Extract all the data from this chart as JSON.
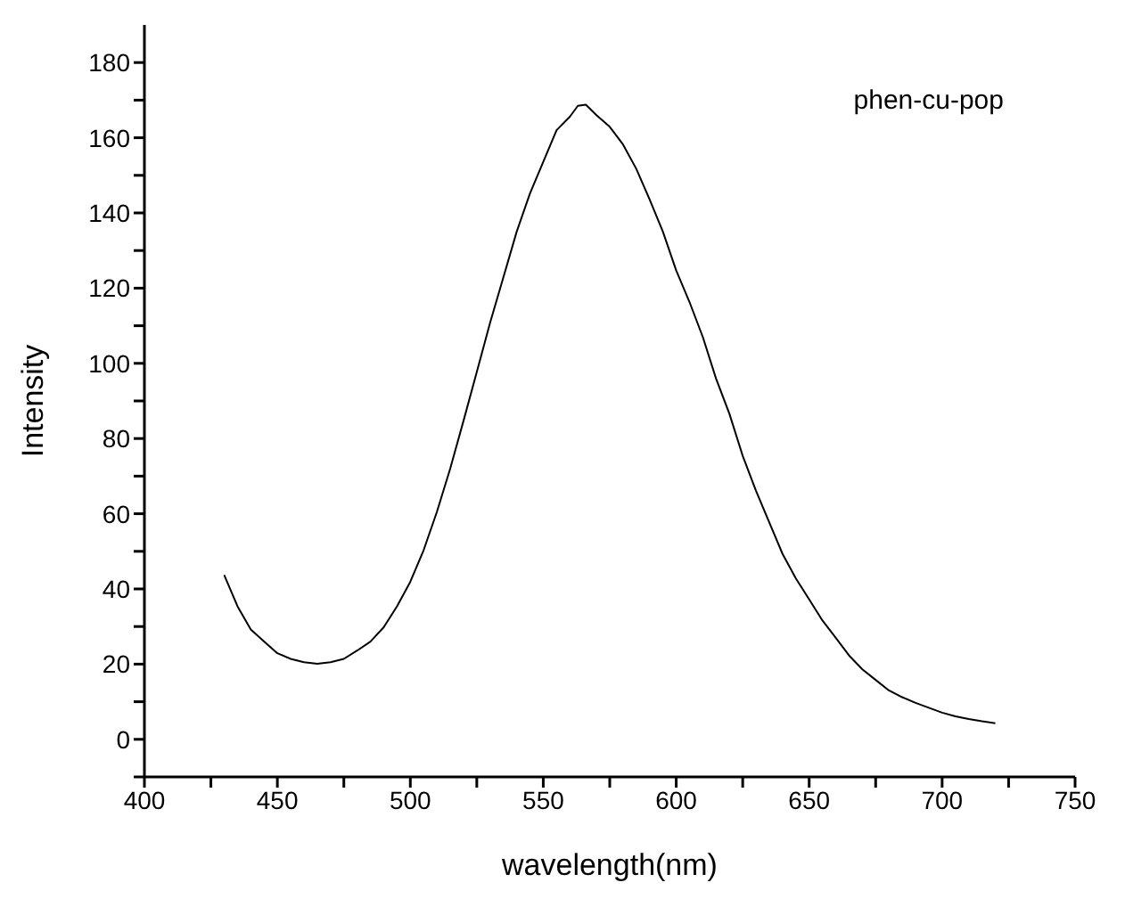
{
  "chart_data": {
    "type": "line",
    "xlabel": "wavelength(nm)",
    "ylabel": "Intensity",
    "x": [
      430,
      435,
      440,
      445,
      450,
      455,
      460,
      465,
      470,
      475,
      480,
      485,
      490,
      495,
      500,
      505,
      510,
      515,
      520,
      525,
      530,
      535,
      540,
      545,
      550,
      555,
      560,
      563,
      566,
      570,
      575,
      580,
      585,
      590,
      595,
      600,
      605,
      610,
      615,
      620,
      625,
      630,
      635,
      640,
      645,
      650,
      655,
      660,
      665,
      670,
      675,
      680,
      685,
      690,
      695,
      700,
      705,
      710,
      715,
      720
    ],
    "series": [
      {
        "name": "phen-cu-pop",
        "color": "#000000",
        "values": [
          43.7,
          35.4,
          29.2,
          26,
          22.9,
          21.4,
          20.5,
          20.1,
          20.5,
          21.4,
          23.6,
          26,
          29.8,
          35.4,
          41.9,
          50.3,
          60.5,
          72,
          84.7,
          97.7,
          110.8,
          122.9,
          135,
          145.2,
          153.6,
          162,
          165.6,
          168.5,
          168.8,
          166,
          162.9,
          158.2,
          151.7,
          143.6,
          135,
          124.7,
          116.3,
          107,
          95.9,
          86.6,
          75.4,
          66.1,
          57.7,
          49.3,
          42.8,
          37.2,
          31.6,
          27,
          22.3,
          18.6,
          15.8,
          13,
          11.2,
          9.7,
          8.4,
          7.1,
          6.1,
          5.4,
          4.8,
          4.3
        ]
      }
    ],
    "xlim": [
      400,
      750
    ],
    "xticks": [
      400,
      {
        "value": 425,
        "label": null
      },
      450,
      {
        "value": 475,
        "label": null
      },
      500,
      {
        "value": 525,
        "label": null
      },
      550,
      {
        "value": 575,
        "label": null
      },
      600,
      {
        "value": 625,
        "label": null
      },
      650,
      {
        "value": 675,
        "label": null
      },
      700,
      {
        "value": 725,
        "label": null
      },
      750
    ],
    "ylim": [
      -10,
      190
    ],
    "yticks": [
      {
        "value": -10,
        "label": null
      },
      0,
      {
        "value": 10,
        "label": null
      },
      20,
      {
        "value": 30,
        "label": null
      },
      40,
      {
        "value": 50,
        "label": null
      },
      60,
      {
        "value": 70,
        "label": null
      },
      80,
      {
        "value": 90,
        "label": null
      },
      100,
      {
        "value": 110,
        "label": null
      },
      120,
      {
        "value": 130,
        "label": null
      },
      140,
      {
        "value": 150,
        "label": null
      },
      160,
      {
        "value": 170,
        "label": null
      },
      180
    ],
    "grid": false,
    "legend": "top right",
    "marker": "none",
    "line_style": "solid"
  }
}
